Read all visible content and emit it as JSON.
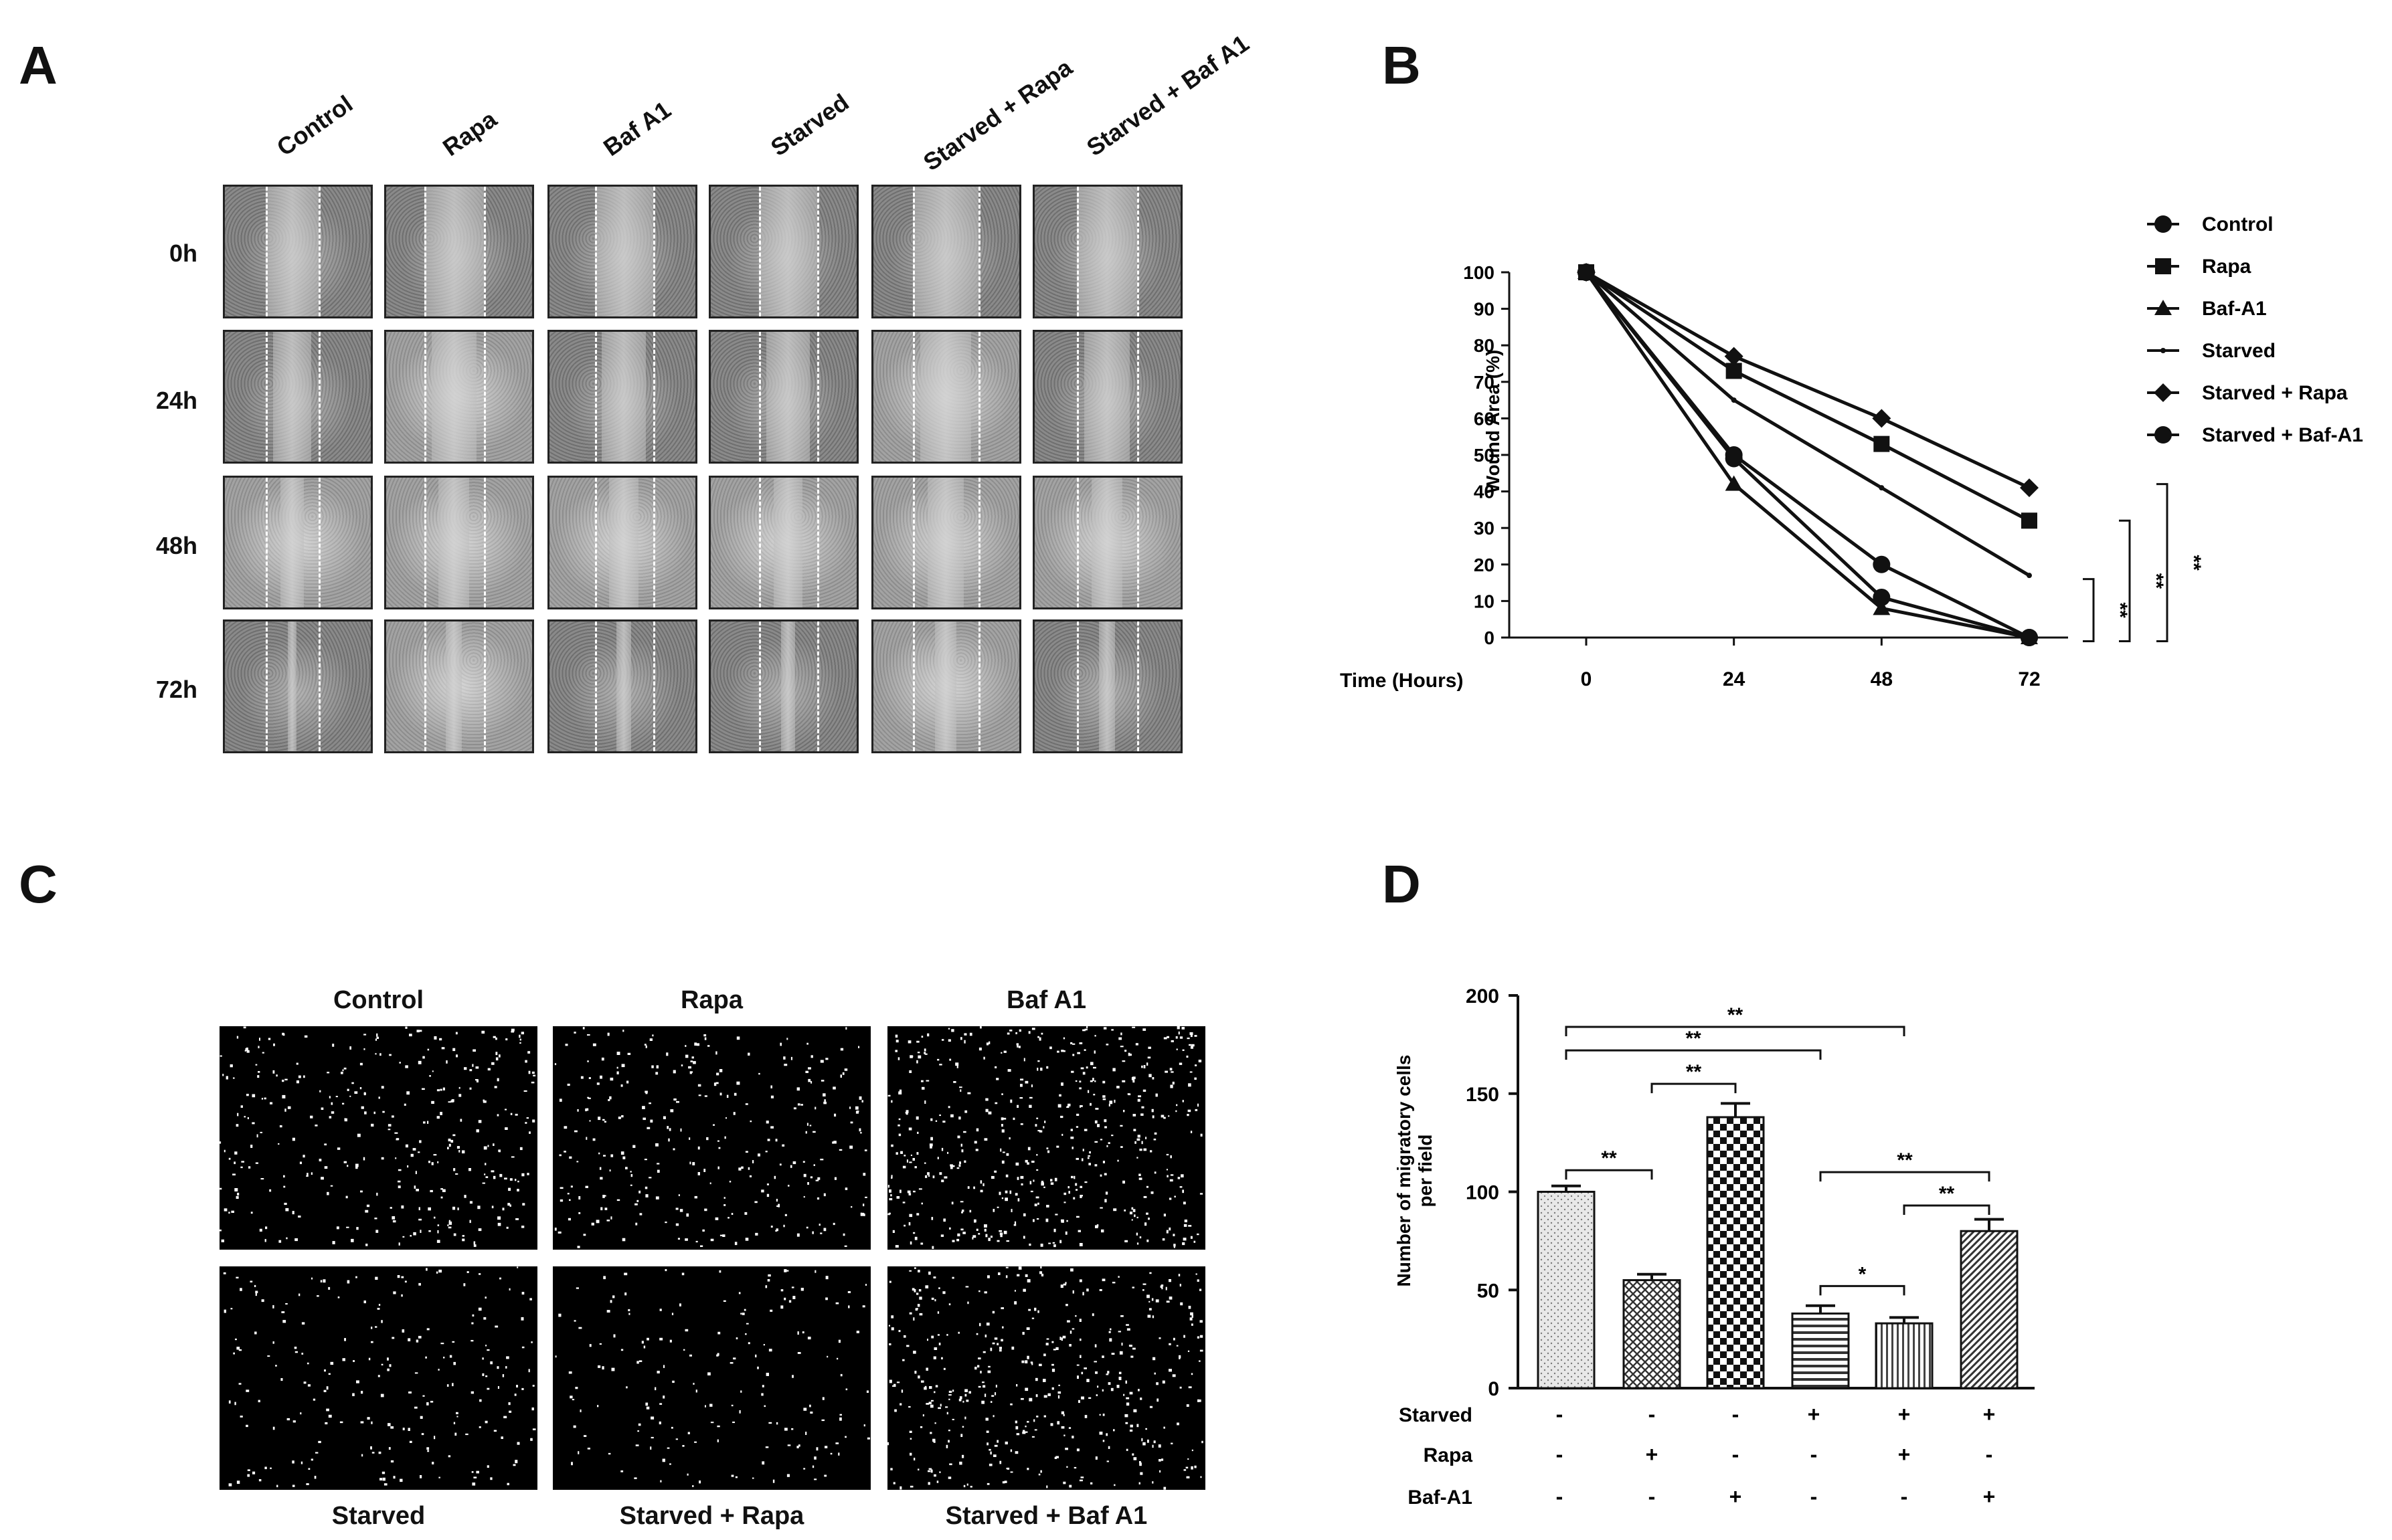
{
  "panels": {
    "a": "A",
    "b": "B",
    "c": "C",
    "d": "D"
  },
  "panel_a": {
    "columns": [
      "Control",
      "Rapa",
      "Baf A1",
      "Starved",
      "Starved + Rapa",
      "Starved + Baf A1"
    ],
    "rows": [
      "0h",
      "24h",
      "48h",
      "72h"
    ]
  },
  "panel_c": {
    "top_labels": [
      "Control",
      "Rapa",
      "Baf A1"
    ],
    "bottom_labels": [
      "Starved",
      "Starved  + Rapa",
      "Starved + Baf A1"
    ]
  },
  "chart_data": [
    {
      "type": "line",
      "panel": "B",
      "xlabel": "Time (Hours)",
      "ylabel": "Wound Area (%)",
      "x": [
        0,
        24,
        48,
        72
      ],
      "xticks": [
        "0",
        "24",
        "48",
        "72"
      ],
      "ylim": [
        0,
        100
      ],
      "yticks": [
        "0",
        "10",
        "20",
        "30",
        "40",
        "50",
        "60",
        "70",
        "80",
        "90",
        "100"
      ],
      "series": [
        {
          "name": "Control",
          "marker": "circle",
          "values": [
            100,
            49,
            11,
            0
          ]
        },
        {
          "name": "Rapa",
          "marker": "square",
          "values": [
            100,
            73,
            53,
            32
          ]
        },
        {
          "name": "Baf-A1",
          "marker": "triangle",
          "values": [
            100,
            42,
            8,
            0
          ]
        },
        {
          "name": "Starved",
          "marker": "dash",
          "values": [
            100,
            65,
            41,
            17
          ]
        },
        {
          "name": "Starved + Rapa",
          "marker": "diamond",
          "values": [
            100,
            77,
            60,
            41
          ]
        },
        {
          "name": "Starved + Baf-A1",
          "marker": "circle",
          "values": [
            100,
            50,
            20,
            0
          ]
        }
      ],
      "significance": [
        "**",
        "**",
        "**"
      ]
    },
    {
      "type": "bar",
      "panel": "D",
      "ylabel": "Number of migratory cells per field",
      "ylim": [
        0,
        200
      ],
      "yticks": [
        "0",
        "50",
        "100",
        "150",
        "200"
      ],
      "values": [
        100,
        55,
        138,
        38,
        33,
        80
      ],
      "errors": [
        3,
        3,
        7,
        4,
        3,
        6
      ],
      "conditions": [
        {
          "label": "Starved",
          "signs": [
            "-",
            "-",
            "-",
            "+",
            "+",
            "+"
          ]
        },
        {
          "label": "Rapa",
          "signs": [
            "-",
            "+",
            "-",
            "-",
            "+",
            "-"
          ]
        },
        {
          "label": "Baf-A1",
          "signs": [
            "-",
            "-",
            "+",
            "-",
            "-",
            "+"
          ]
        }
      ],
      "comparisons": [
        {
          "from": 0,
          "to": 4,
          "label": "**"
        },
        {
          "from": 0,
          "to": 3,
          "label": "**"
        },
        {
          "from": 1,
          "to": 2,
          "label": "**"
        },
        {
          "from": 0,
          "to": 1,
          "label": "**"
        },
        {
          "from": 3,
          "to": 5,
          "label": "**"
        },
        {
          "from": 4,
          "to": 5,
          "label": "**"
        },
        {
          "from": 3,
          "to": 4,
          "label": "*"
        }
      ]
    }
  ]
}
